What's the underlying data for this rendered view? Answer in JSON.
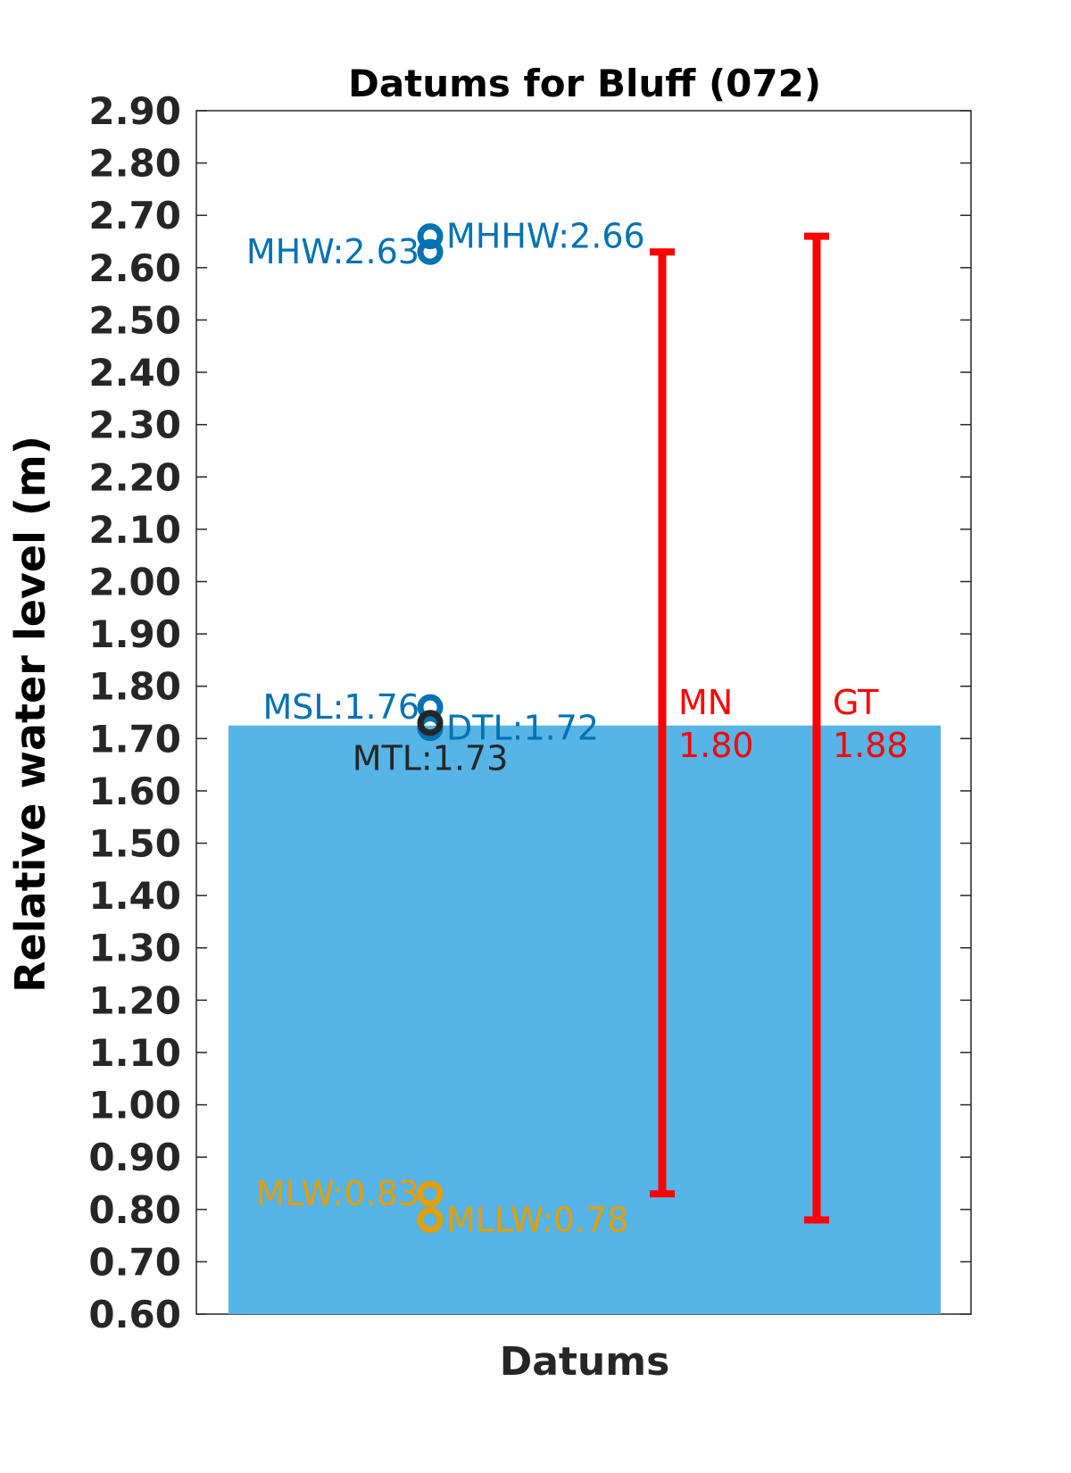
{
  "chart_data": {
    "type": "scatter",
    "title": "Datums for Bluff (072)",
    "xlabel": "Datums",
    "ylabel": "Relative water level (m)",
    "ylim": [
      0.6,
      2.9
    ],
    "yticks": [
      "0.60",
      "0.70",
      "0.80",
      "0.90",
      "1.00",
      "1.10",
      "1.20",
      "1.30",
      "1.40",
      "1.50",
      "1.60",
      "1.70",
      "1.80",
      "1.90",
      "2.00",
      "2.10",
      "2.20",
      "2.30",
      "2.40",
      "2.50",
      "2.60",
      "2.70",
      "2.80",
      "2.90"
    ],
    "grid": false,
    "background_fill": {
      "top_value": 1.725,
      "color": "#56b4e6"
    },
    "datums": [
      {
        "name": "MHHW",
        "value": 2.66,
        "label": "MHHW:2.66",
        "color": "#0072b2",
        "label_side": "right"
      },
      {
        "name": "MHW",
        "value": 2.63,
        "label": "MHW:2.63",
        "color": "#0072b2",
        "label_side": "left"
      },
      {
        "name": "MSL",
        "value": 1.76,
        "label": "MSL:1.76",
        "color": "#0072b2",
        "label_side": "left"
      },
      {
        "name": "DTL",
        "value": 1.72,
        "label": "DTL:1.72",
        "color": "#0072b2",
        "label_side": "right"
      },
      {
        "name": "MTL",
        "value": 1.73,
        "label": "MTL:1.73",
        "color": "#262626",
        "label_side": "below"
      },
      {
        "name": "MLW",
        "value": 0.83,
        "label": "MLW:0.83",
        "color": "#e69f00",
        "label_side": "left"
      },
      {
        "name": "MLLW",
        "value": 0.78,
        "label": "MLLW:0.78",
        "color": "#e69f00",
        "label_side": "right"
      }
    ],
    "ranges": [
      {
        "name": "MN",
        "low": 0.83,
        "high": 2.63,
        "label_line1": "MN",
        "label_line2": "1.80",
        "color": "#ff0000"
      },
      {
        "name": "GT",
        "low": 0.78,
        "high": 2.66,
        "label_line1": "GT",
        "label_line2": "1.88",
        "color": "#ff0000"
      }
    ]
  }
}
